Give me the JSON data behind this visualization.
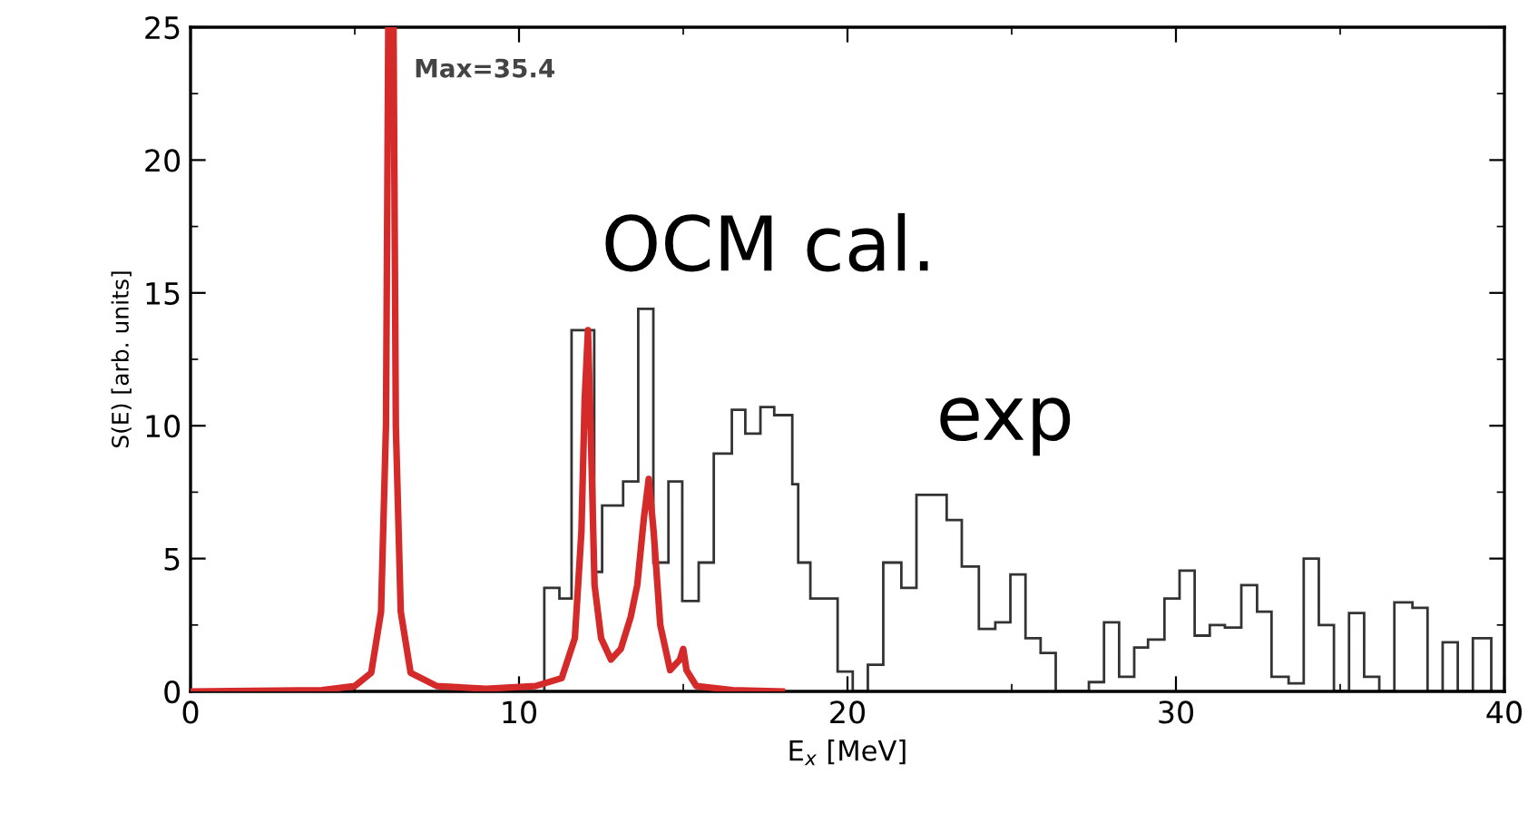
{
  "chart_data": {
    "type": "line",
    "xlabel": "E$_{x}$ [MeV]",
    "ylabel": "S(E) [arb. units]",
    "xlim": [
      0,
      40
    ],
    "xticks": [
      0,
      10,
      20,
      30,
      40
    ],
    "ylim": [
      0,
      25
    ],
    "yticks": [
      0,
      5,
      10,
      15,
      20,
      25
    ],
    "grid": false,
    "marker": "none",
    "line_style": "solid",
    "annotations": [
      "Max=35.4"
    ],
    "series": [
      {
        "name": "OCM cal.",
        "color": "#d42a2a",
        "x": [
          0,
          4,
          5,
          5.5,
          5.8,
          5.95,
          6.02,
          6.18,
          6.25,
          6.4,
          6.7,
          7.5,
          9,
          10.5,
          11.3,
          11.7,
          11.9,
          12.0,
          12.1,
          12.2,
          12.3,
          12.5,
          12.8,
          13.1,
          13.4,
          13.6,
          13.8,
          13.95,
          14.1,
          14.3,
          14.6,
          14.9,
          15.0,
          15.1,
          15.4,
          16.5,
          18
        ],
        "values": [
          0,
          0.05,
          0.2,
          0.7,
          3,
          10,
          25,
          25,
          10,
          3,
          0.7,
          0.2,
          0.1,
          0.2,
          0.5,
          2,
          6,
          11,
          13.6,
          9,
          4,
          2,
          1.2,
          1.6,
          2.8,
          4,
          6.5,
          8.0,
          6,
          2.5,
          0.8,
          1.2,
          1.6,
          0.8,
          0.2,
          0.05,
          0
        ]
      },
      {
        "name": "exp",
        "type": "histogram",
        "color": "#333333",
        "bins": [
          10.77,
          11.23,
          11.6,
          12.29,
          12.53,
          13.17,
          13.63,
          14.09,
          14.55,
          14.97,
          15.47,
          15.93,
          16.48,
          16.89,
          17.35,
          17.77,
          18.32,
          18.5,
          18.87,
          19.7,
          20.16,
          20.62,
          21.09,
          21.64,
          22.1,
          23.02,
          23.48,
          24.0,
          24.5,
          24.96,
          25.42,
          25.88,
          26.34,
          27.35,
          27.81,
          28.27,
          28.73,
          29.15,
          29.65,
          30.11,
          30.57,
          31.03,
          31.49,
          31.99,
          32.47,
          32.91,
          33.43,
          33.89,
          34.35,
          34.81,
          35.27,
          35.73,
          36.19,
          36.65,
          37.2,
          37.66,
          38.12,
          38.58,
          39.04,
          39.6
        ],
        "values": [
          3.9,
          3.5,
          13.6,
          4.5,
          7.0,
          7.9,
          14.4,
          4.85,
          7.9,
          3.4,
          4.85,
          8.95,
          10.6,
          9.7,
          10.7,
          10.4,
          7.8,
          4.85,
          3.5,
          0.75,
          0,
          1.0,
          4.85,
          3.9,
          7.4,
          6.45,
          4.7,
          2.35,
          2.6,
          4.4,
          2.0,
          1.45,
          0,
          0.35,
          2.6,
          0.55,
          1.65,
          1.95,
          3.5,
          4.55,
          2.1,
          2.5,
          2.4,
          4.0,
          3.0,
          0.55,
          0.3,
          5.0,
          2.5,
          0,
          2.95,
          0.55,
          0,
          3.35,
          3.15,
          0,
          1.85,
          0,
          2.0
        ]
      }
    ]
  }
}
